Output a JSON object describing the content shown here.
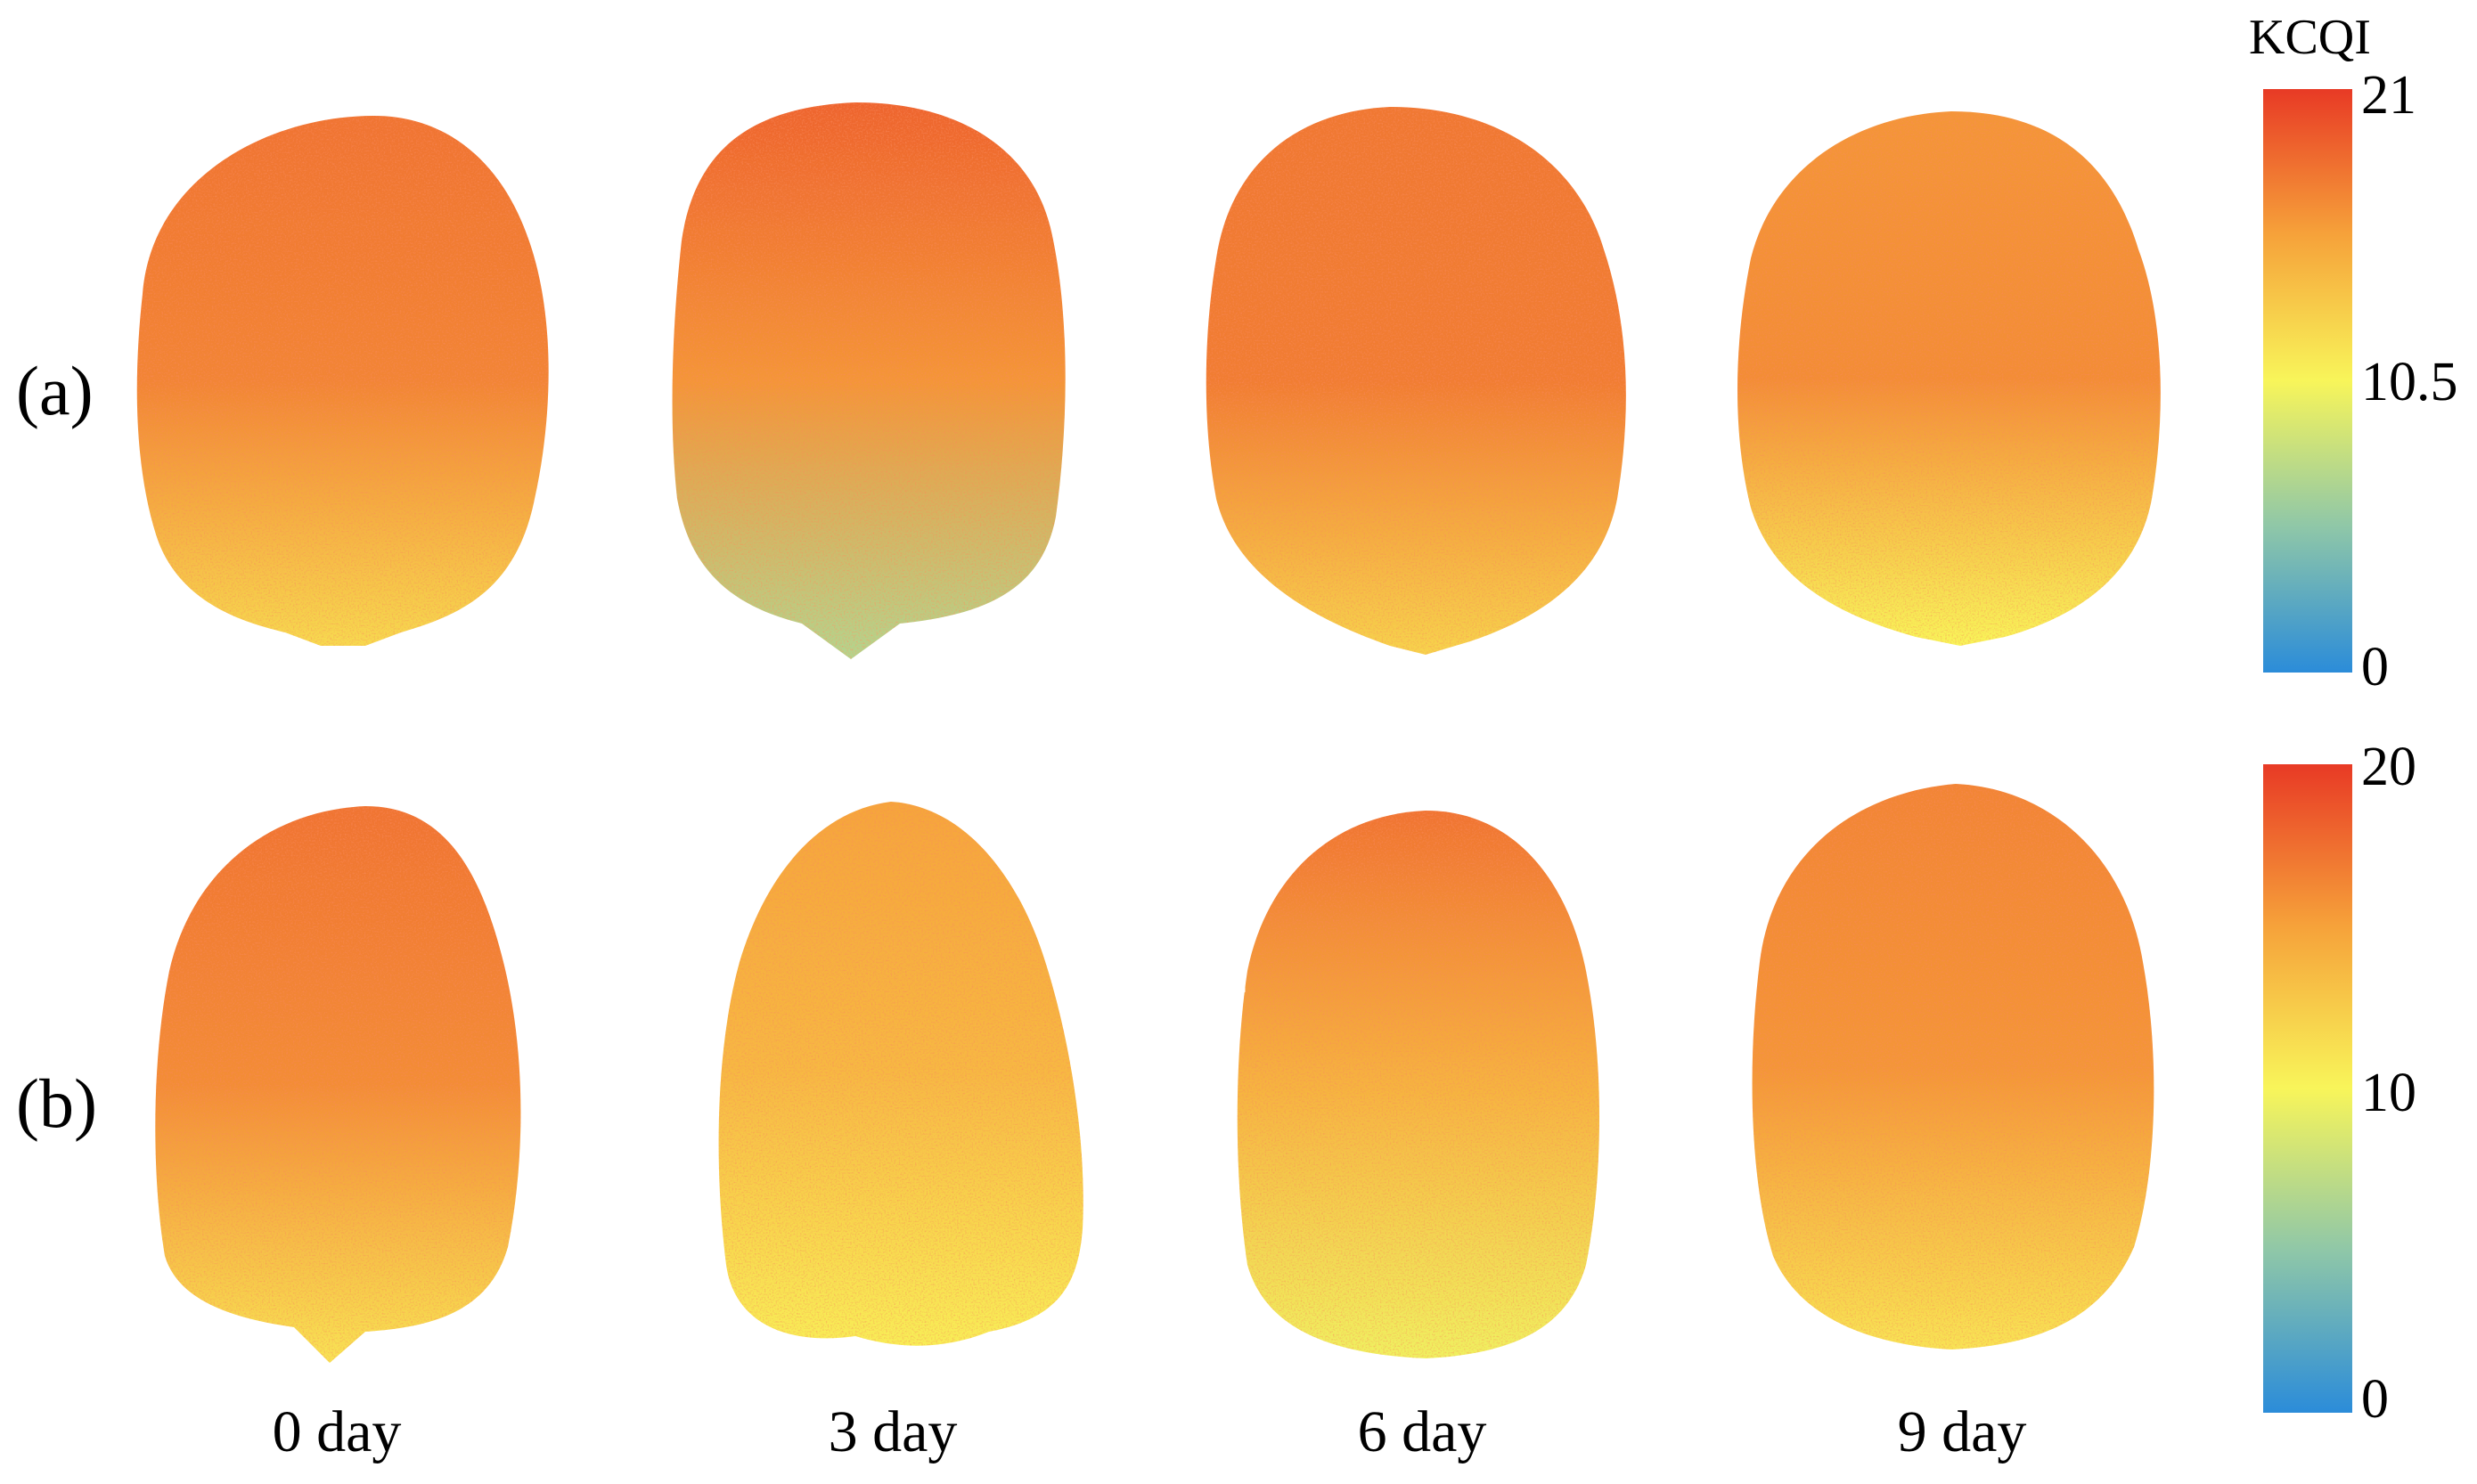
{
  "figure": {
    "rows": [
      {
        "label": "(a)",
        "colorbar": {
          "title": "KCQI",
          "max": 21,
          "mid": 10.5,
          "min": 0,
          "tick_labels": [
            "21",
            "10.5",
            "0"
          ]
        }
      },
      {
        "label": "(b)",
        "colorbar": {
          "title": "",
          "max": 20,
          "mid": 10,
          "min": 0,
          "tick_labels": [
            "20",
            "10",
            "0"
          ]
        }
      }
    ],
    "columns": [
      "0 day",
      "3 day",
      "6 day",
      "9 day"
    ],
    "colormap": [
      "#2b8cd9",
      "#8fc7a8",
      "#f8f55a",
      "#f6a23a",
      "#e83a25"
    ],
    "fruit_levels": {
      "row_a": [
        {
          "top": 0.86,
          "mid": 0.82,
          "bottom": 0.58
        },
        {
          "top": 0.9,
          "mid": 0.78,
          "bottom": 0.33
        },
        {
          "top": 0.85,
          "mid": 0.84,
          "bottom": 0.6
        },
        {
          "top": 0.78,
          "mid": 0.8,
          "bottom": 0.5
        }
      ],
      "row_b": [
        {
          "top": 0.86,
          "mid": 0.8,
          "bottom": 0.55
        },
        {
          "top": 0.74,
          "mid": 0.68,
          "bottom": 0.52
        },
        {
          "top": 0.86,
          "mid": 0.7,
          "bottom": 0.48
        },
        {
          "top": 0.82,
          "mid": 0.78,
          "bottom": 0.55
        }
      ]
    }
  }
}
